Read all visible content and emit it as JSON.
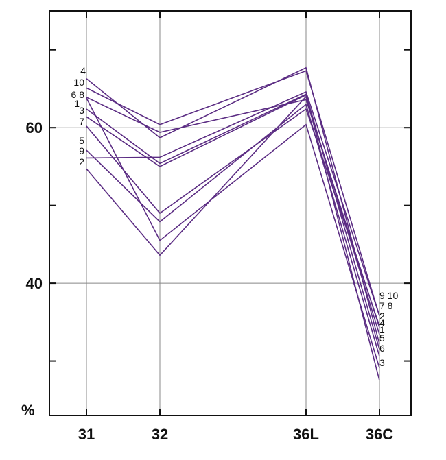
{
  "chart_data": {
    "type": "line",
    "title": "",
    "xlabel": "",
    "ylabel": "%",
    "categories": [
      "31",
      "32",
      "36L",
      "36C"
    ],
    "ylim": [
      23,
      75
    ],
    "yticks": [
      40,
      60
    ],
    "grid": true,
    "line_color": "#5b2c83",
    "series": [
      {
        "name": "1",
        "values": [
          62.4,
          55.4,
          64.3,
          31.5
        ]
      },
      {
        "name": "2",
        "values": [
          54.7,
          43.6,
          64.0,
          33.4
        ]
      },
      {
        "name": "3",
        "values": [
          61.4,
          55.0,
          64.2,
          27.5
        ]
      },
      {
        "name": "4",
        "values": [
          66.3,
          58.7,
          67.7,
          32.2
        ]
      },
      {
        "name": "5",
        "values": [
          57.1,
          47.9,
          63.0,
          30.6
        ]
      },
      {
        "name": "6",
        "values": [
          63.8,
          45.5,
          60.4,
          29.1
        ]
      },
      {
        "name": "7",
        "values": [
          60.2,
          49.0,
          62.4,
          34.5
        ]
      },
      {
        "name": "8",
        "values": [
          63.9,
          59.4,
          63.6,
          34.3
        ]
      },
      {
        "name": "9",
        "values": [
          56.1,
          56.2,
          64.6,
          35.8
        ]
      },
      {
        "name": "10",
        "values": [
          65.1,
          60.4,
          67.3,
          35.8
        ]
      }
    ],
    "start_labels": [
      "4",
      "10",
      "6 8",
      "1",
      "3",
      "7",
      "5",
      "9",
      "2"
    ],
    "end_labels": [
      "9 10",
      "7 8",
      "2",
      "4",
      "1",
      "5",
      "6",
      "3"
    ]
  }
}
